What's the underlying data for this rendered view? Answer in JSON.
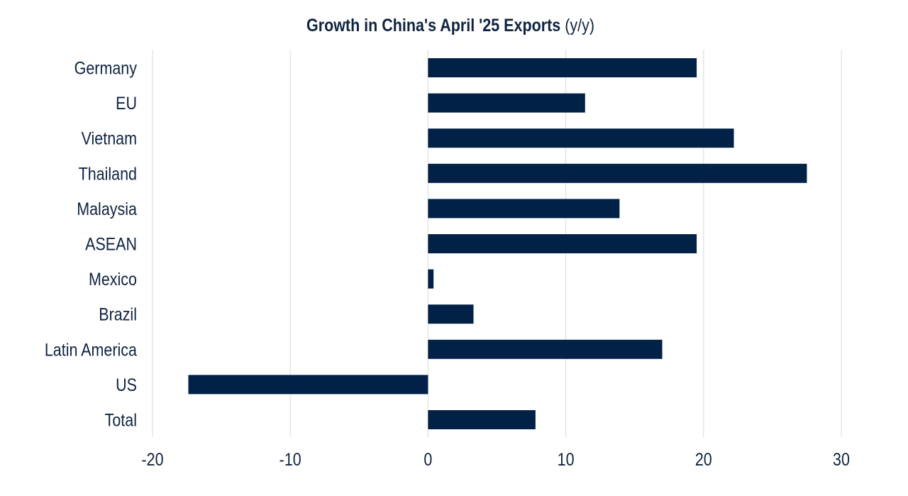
{
  "chart_data": {
    "type": "bar",
    "orientation": "horizontal",
    "title": "Growth in China's April '25 Exports",
    "title_suffix": "(y/y)",
    "xlabel": "",
    "ylabel": "",
    "categories": [
      "Germany",
      "EU",
      "Vietnam",
      "Thailand",
      "Malaysia",
      "ASEAN",
      "Mexico",
      "Brazil",
      "Latin America",
      "US",
      "Total"
    ],
    "values": [
      19.5,
      11.4,
      22.2,
      27.5,
      13.9,
      19.5,
      0.4,
      3.3,
      17.0,
      -17.4,
      7.8
    ],
    "xlim": [
      -20,
      30
    ],
    "xticks": [
      "-20",
      "-10",
      "0",
      "10",
      "20",
      "30"
    ],
    "grid": "vertical",
    "legend": "none",
    "bar_color": "#012147",
    "grid_color": "#d9d9d9",
    "text_color": "#0f2342"
  }
}
